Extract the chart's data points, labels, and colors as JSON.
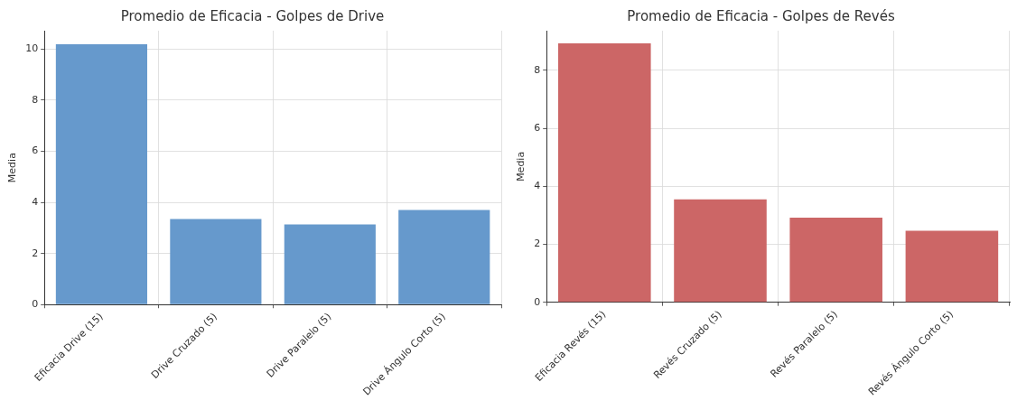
{
  "chart_data": [
    {
      "type": "bar",
      "title": "Promedio de Eficacia - Golpes de Drive",
      "ylabel": "Media",
      "categories": [
        "Eficacia Drive (15)",
        "Drive Cruzado (5)",
        "Drive Paralelo (5)",
        "Drive Ángulo Corto (5)"
      ],
      "values": [
        10.19,
        3.35,
        3.14,
        3.7
      ],
      "color": "#6699cc",
      "ylim": [
        0,
        10.72
      ],
      "yticks": [
        0,
        2,
        4,
        6,
        8,
        10
      ],
      "grid": true
    },
    {
      "type": "bar",
      "title": "Promedio de Eficacia - Golpes de Revés",
      "ylabel": "Media",
      "categories": [
        "Eficacia Revés (15)",
        "Revés Cruzado (5)",
        "Revés Paralelo (5)",
        "Revés Ángulo Corto (5)"
      ],
      "values": [
        8.93,
        3.55,
        2.92,
        2.47
      ],
      "color": "#cc6666",
      "ylim": [
        0,
        9.37
      ],
      "yticks": [
        0,
        2,
        4,
        6,
        8
      ],
      "grid": true
    }
  ]
}
